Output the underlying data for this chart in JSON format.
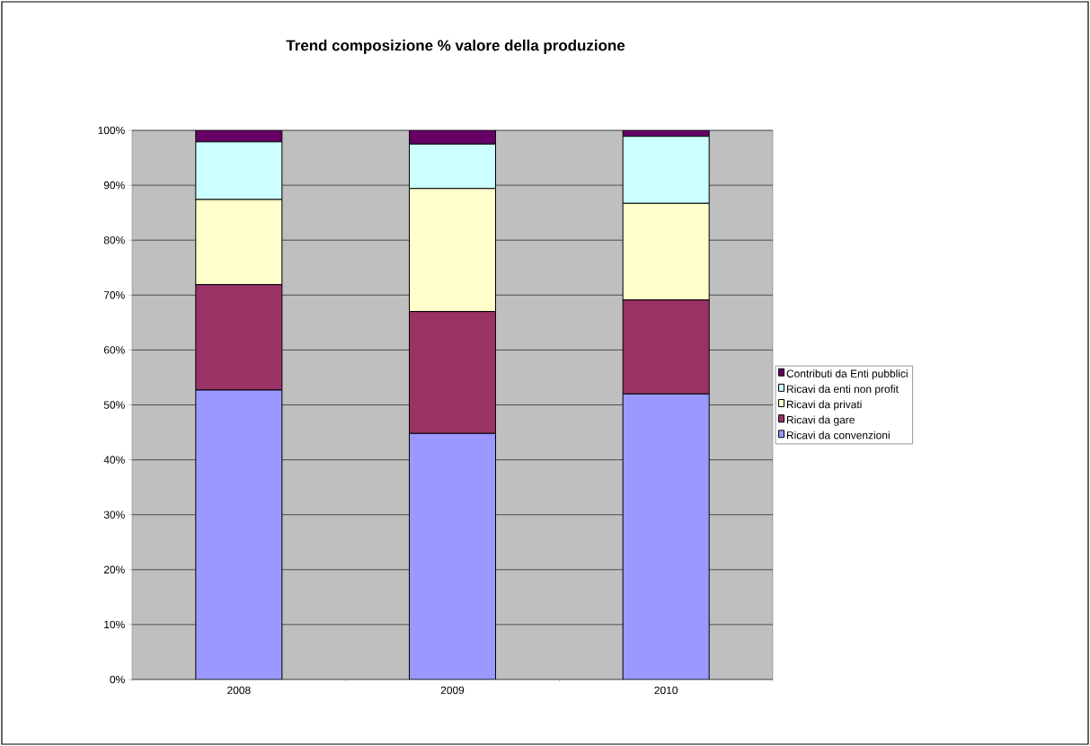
{
  "chart_data": {
    "type": "bar",
    "stacked": true,
    "title": "Trend composizione % valore della produzione",
    "categories": [
      "2008",
      "2009",
      "2010"
    ],
    "series": [
      {
        "name": "Ricavi da convenzioni",
        "color": "#9999ff",
        "values": [
          52.7,
          44.8,
          52.0
        ]
      },
      {
        "name": "Ricavi da gare",
        "color": "#993366",
        "values": [
          19.2,
          22.2,
          17.1
        ]
      },
      {
        "name": "Ricavi da privati",
        "color": "#ffffcc",
        "values": [
          15.5,
          22.4,
          17.6
        ]
      },
      {
        "name": "Ricavi da enti non profit",
        "color": "#ccffff",
        "values": [
          10.5,
          8.1,
          12.2
        ]
      },
      {
        "name": "Contributi da Enti pubblici",
        "color": "#660066",
        "values": [
          2.1,
          2.5,
          1.1
        ]
      }
    ],
    "ylim": [
      0,
      100
    ],
    "yticks": [
      {
        "value": 0,
        "label": "0%"
      },
      {
        "value": 10,
        "label": "10%"
      },
      {
        "value": 20,
        "label": "20%"
      },
      {
        "value": 30,
        "label": "30%"
      },
      {
        "value": 40,
        "label": "40%"
      },
      {
        "value": 50,
        "label": "50%"
      },
      {
        "value": 60,
        "label": "60%"
      },
      {
        "value": 70,
        "label": "70%"
      },
      {
        "value": 80,
        "label": "80%"
      },
      {
        "value": 90,
        "label": "90%"
      },
      {
        "value": 100,
        "label": "100%"
      }
    ],
    "grid": "y",
    "legend": "right"
  }
}
